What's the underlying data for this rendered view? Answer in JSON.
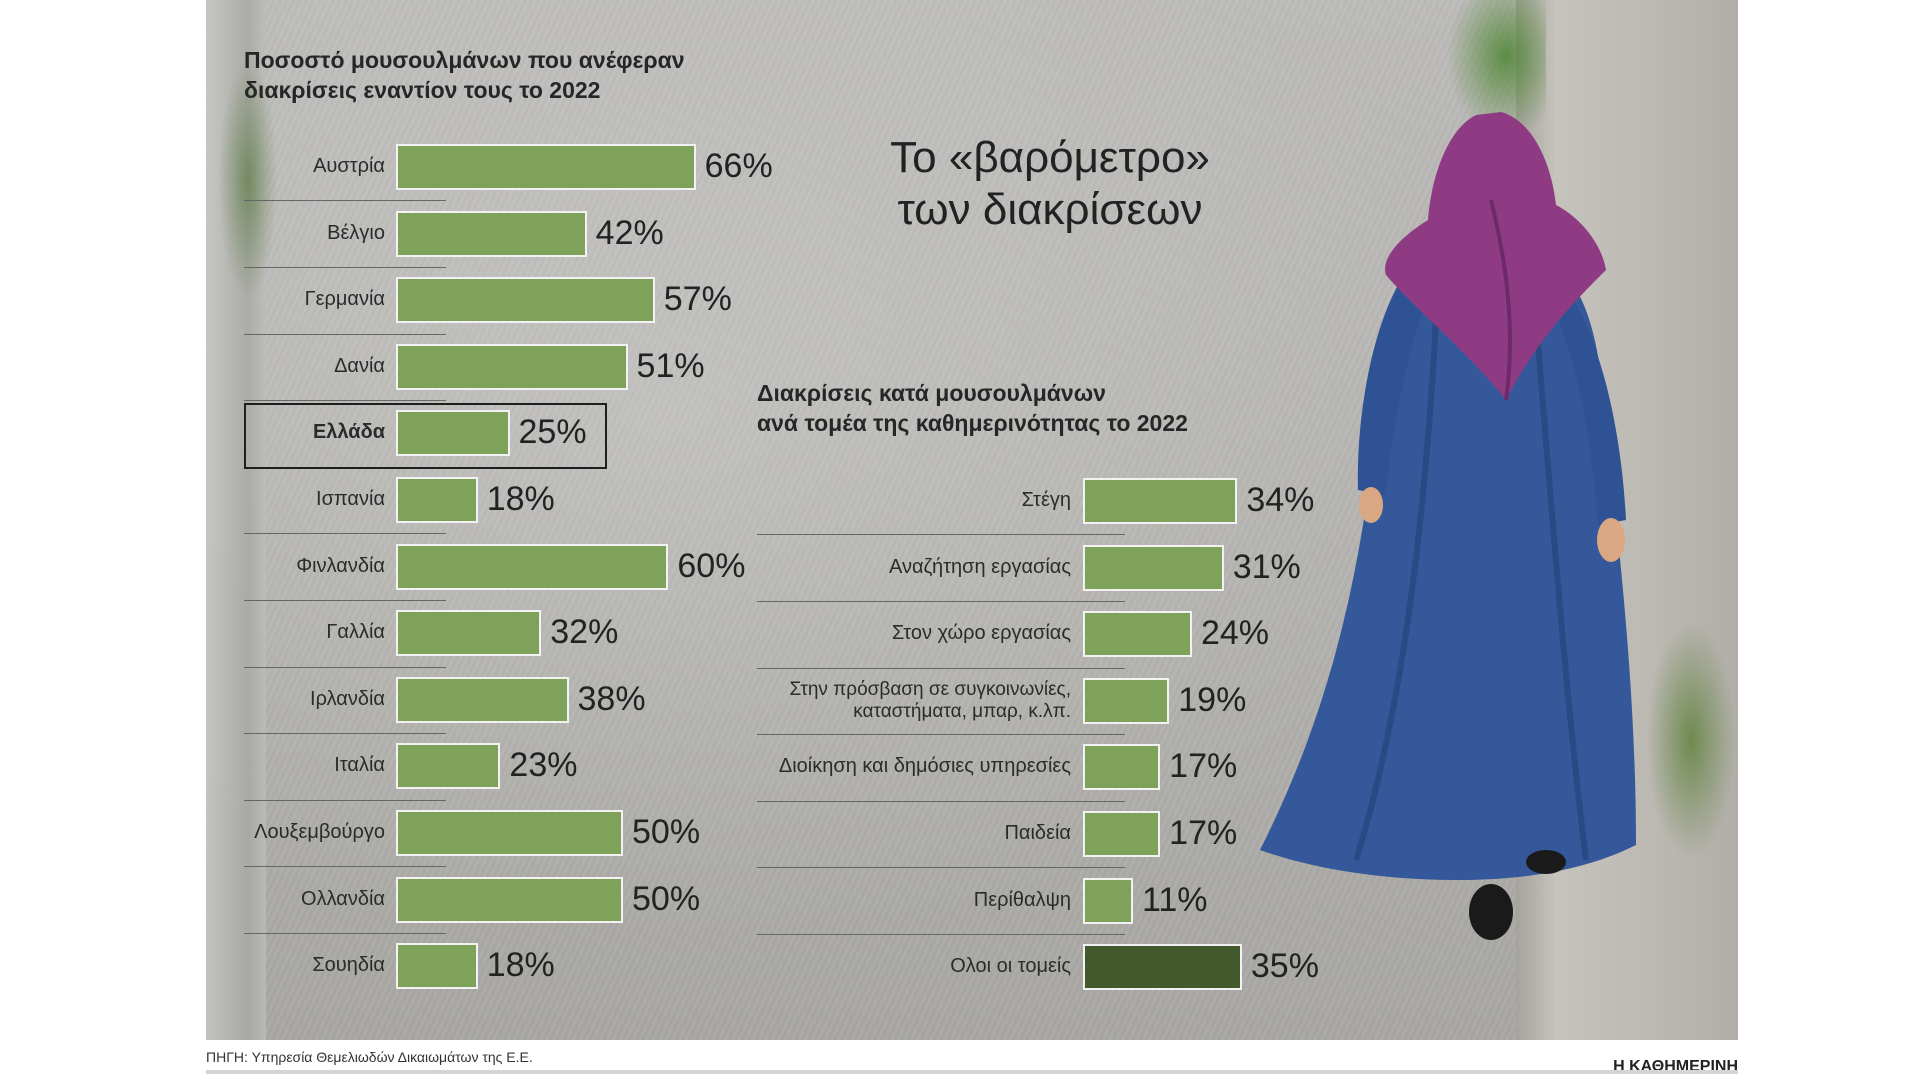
{
  "main_title": {
    "line1": "Το «βαρόμετρο»",
    "line2": "των διακρίσεων"
  },
  "source": "ΠΗΓΗ: Υπηρεσία Θεμελιωδών Δικαιωμάτων της Ε.Ε.",
  "brand": "Η ΚΑΘΗΜΕΡΙΝΗ",
  "colors": {
    "bar": "#7ea25a",
    "bar_total": "#42592d",
    "text": "#1e1e1e"
  },
  "chart_data": [
    {
      "type": "bar",
      "orientation": "horizontal",
      "title": "Ποσοστό μουσουλμάνων που ανέφεραν διακρίσεις εναντίον τους το 2022",
      "title_lines": [
        "Ποσοστό μουσουλμάνων που ανέφεραν",
        "διακρίσεις εναντίον τους το 2022"
      ],
      "categories": [
        "Αυστρία",
        "Βέλγιο",
        "Γερμανία",
        "Δανία",
        "Ελλάδα",
        "Ισπανία",
        "Φινλανδία",
        "Γαλλία",
        "Ιρλανδία",
        "Ιταλία",
        "Λουξεμβούργο",
        "Ολλανδία",
        "Σουηδία"
      ],
      "values": [
        66,
        42,
        57,
        51,
        25,
        18,
        60,
        32,
        38,
        23,
        50,
        50,
        18
      ],
      "value_labels": [
        "66%",
        "42%",
        "57%",
        "51%",
        "25%",
        "18%",
        "60%",
        "32%",
        "38%",
        "23%",
        "50%",
        "50%",
        "18%"
      ],
      "highlight": "Ελλάδα",
      "unit": "%"
    },
    {
      "type": "bar",
      "orientation": "horizontal",
      "title": "Διακρίσεις κατά μουσουλμάνων ανά τομέα της καθημερινότητας το 2022",
      "title_lines": [
        "Διακρίσεις κατά μουσουλμάνων",
        "ανά τομέα της καθημερινότητας το 2022"
      ],
      "categories": [
        "Στέγη",
        "Αναζήτηση εργασίας",
        "Στον χώρο εργασίας",
        "Στην πρόσβαση σε συγκοινωνίες, καταστήματα, μπαρ, κ.λπ.",
        "Διοίκηση και δημόσιες υπηρεσίες",
        "Παιδεία",
        "Περίθαλψη",
        "Ολοι οι τομείς"
      ],
      "label_lines": [
        [
          "Στέγη"
        ],
        [
          "Αναζήτηση εργασίας"
        ],
        [
          "Στον χώρο εργασίας"
        ],
        [
          "Στην πρόσβαση σε συγκοινωνίες,",
          "καταστήματα, μπαρ, κ.λπ."
        ],
        [
          "Διοίκηση και δημόσιες υπηρεσίες"
        ],
        [
          "Παιδεία"
        ],
        [
          "Περίθαλψη"
        ],
        [
          "Ολοι οι τομείς"
        ]
      ],
      "values": [
        34,
        31,
        24,
        19,
        17,
        17,
        11,
        35
      ],
      "value_labels": [
        "34%",
        "31%",
        "24%",
        "19%",
        "17%",
        "17%",
        "11%",
        "35%"
      ],
      "total_category": "Ολοι οι τομείς",
      "unit": "%"
    }
  ]
}
